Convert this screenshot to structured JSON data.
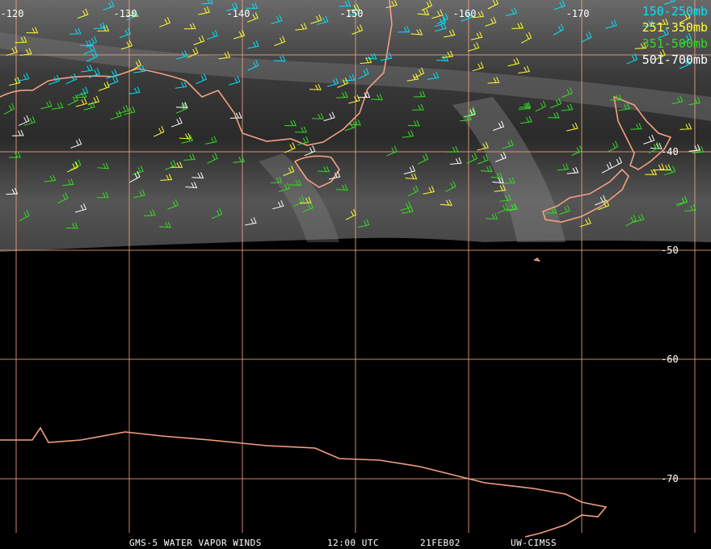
{
  "map": {
    "longitude_labels": [
      "-120",
      "-130",
      "-140",
      "-150",
      "-160",
      "-170"
    ],
    "latitude_labels": [
      "-40",
      "-50",
      "-60",
      "-70"
    ],
    "legend": [
      {
        "label": "150-250mb",
        "color": "#00e5ff"
      },
      {
        "label": "251-350mb",
        "color": "#ffff33"
      },
      {
        "label": "351-500mb",
        "color": "#33dd22"
      },
      {
        "label": "501-700mb",
        "color": "#ffffff"
      }
    ],
    "footer": [
      "GMS-5 WATER VAPOR WINDS",
      "12:00 UTC",
      "21FEB02",
      "UW-CIMSS"
    ]
  }
}
